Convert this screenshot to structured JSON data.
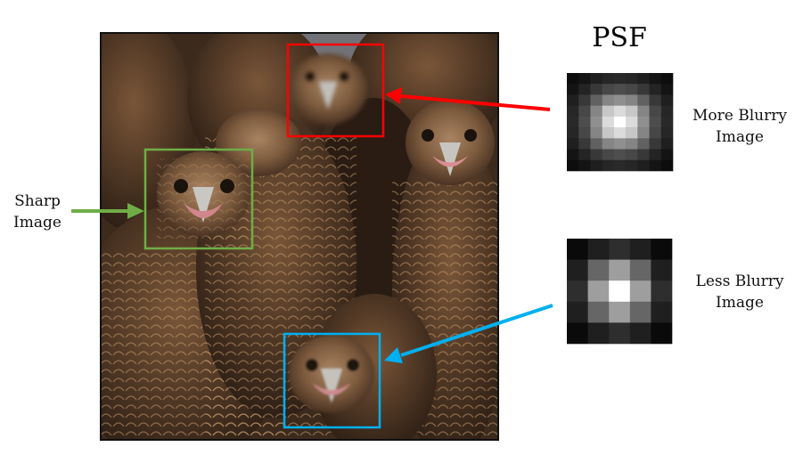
{
  "title": "PSF",
  "labels": {
    "sharp": [
      "Sharp",
      "Image"
    ],
    "more_blurry": [
      "More Blurry",
      "Image"
    ],
    "less_blurry": [
      "Less Blurry",
      "Image"
    ]
  },
  "photo": {
    "subject": "flock of black kites (birds of prey)",
    "regions": [
      {
        "name": "sharp",
        "color": "#70ad47"
      },
      {
        "name": "more-blurry",
        "color": "#ff0000"
      },
      {
        "name": "less-blurry",
        "color": "#00b0f0"
      }
    ]
  },
  "kernels": {
    "more_blurry": {
      "size": 9,
      "values": [
        [
          0.05,
          0.08,
          0.12,
          0.15,
          0.16,
          0.15,
          0.12,
          0.08,
          0.05
        ],
        [
          0.08,
          0.14,
          0.22,
          0.28,
          0.3,
          0.28,
          0.22,
          0.14,
          0.08
        ],
        [
          0.12,
          0.22,
          0.38,
          0.52,
          0.56,
          0.52,
          0.38,
          0.22,
          0.12
        ],
        [
          0.15,
          0.28,
          0.52,
          0.78,
          0.86,
          0.78,
          0.52,
          0.28,
          0.15
        ],
        [
          0.16,
          0.3,
          0.56,
          0.86,
          1.0,
          0.86,
          0.56,
          0.3,
          0.16
        ],
        [
          0.15,
          0.28,
          0.52,
          0.78,
          0.86,
          0.78,
          0.52,
          0.28,
          0.15
        ],
        [
          0.12,
          0.22,
          0.38,
          0.52,
          0.56,
          0.52,
          0.38,
          0.22,
          0.12
        ],
        [
          0.08,
          0.14,
          0.22,
          0.28,
          0.3,
          0.28,
          0.22,
          0.14,
          0.08
        ],
        [
          0.05,
          0.08,
          0.12,
          0.15,
          0.16,
          0.15,
          0.12,
          0.08,
          0.05
        ]
      ]
    },
    "less_blurry": {
      "size": 5,
      "values": [
        [
          0.04,
          0.12,
          0.18,
          0.12,
          0.04
        ],
        [
          0.12,
          0.4,
          0.62,
          0.4,
          0.12
        ],
        [
          0.18,
          0.62,
          1.0,
          0.62,
          0.18
        ],
        [
          0.12,
          0.4,
          0.62,
          0.4,
          0.12
        ],
        [
          0.04,
          0.12,
          0.18,
          0.12,
          0.04
        ]
      ]
    }
  },
  "arrows": [
    {
      "name": "sharp-arrow",
      "color": "#70ad47"
    },
    {
      "name": "more-blurry-arrow",
      "color": "#ff0000"
    },
    {
      "name": "less-blurry-arrow",
      "color": "#00b0f0"
    }
  ]
}
